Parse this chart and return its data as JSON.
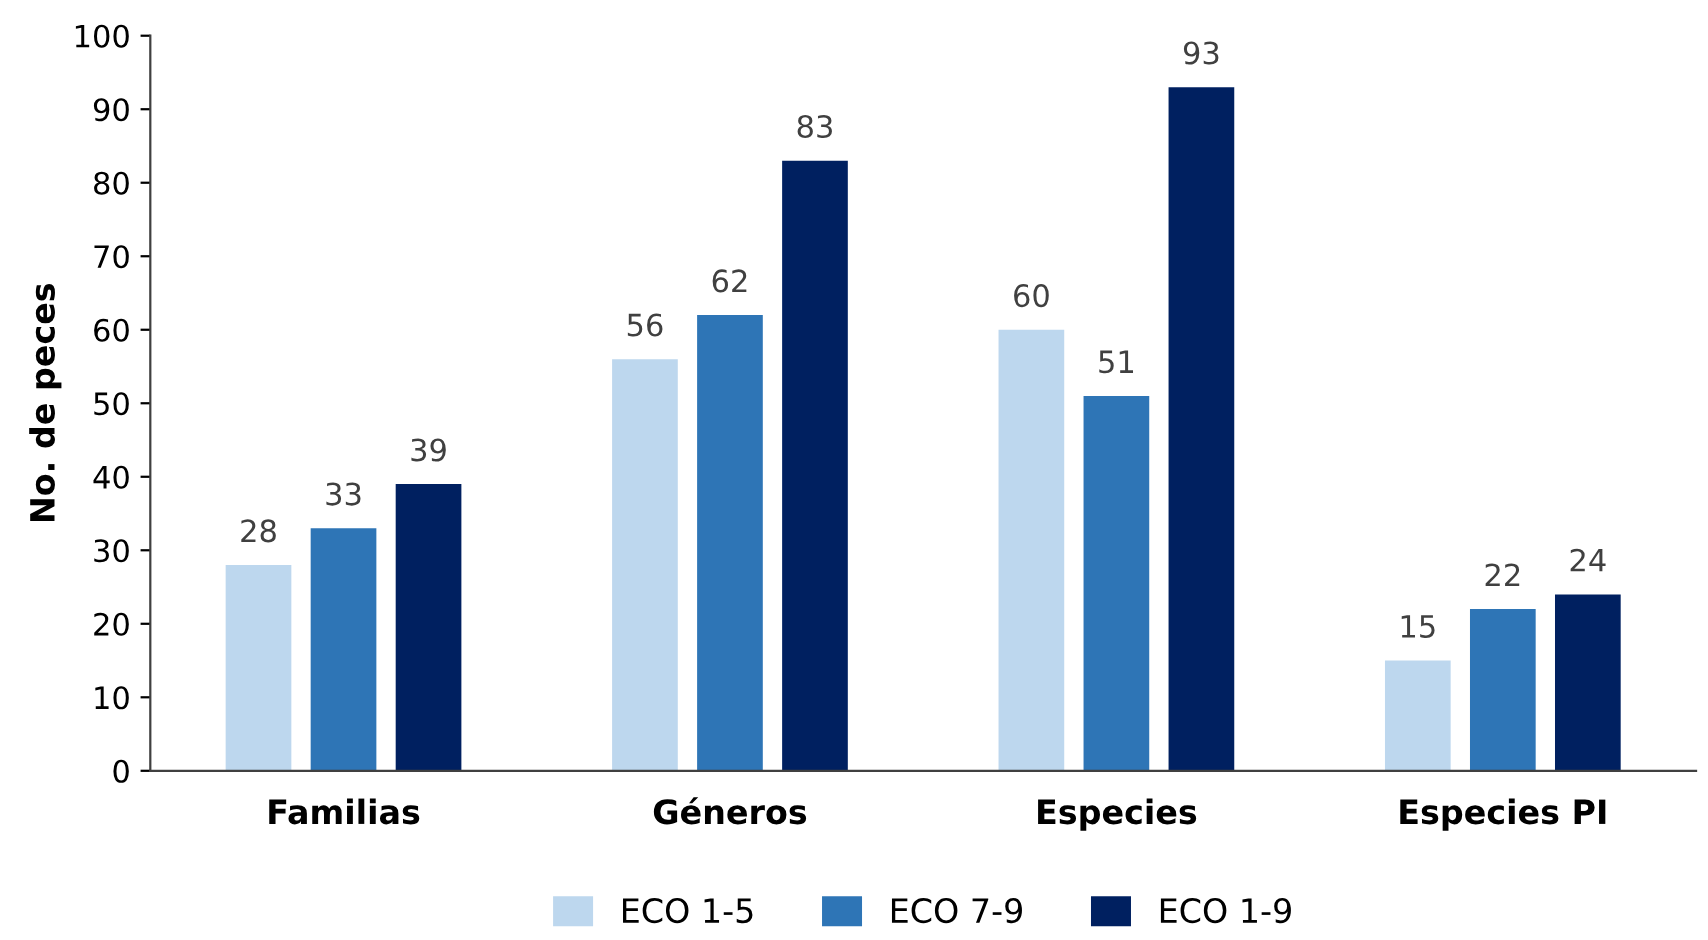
{
  "chart_data": {
    "type": "bar",
    "ylabel": "No. de peces",
    "categories": [
      "Familias",
      "Géneros",
      "Especies",
      "Especies PI"
    ],
    "series": [
      {
        "name": "ECO 1-5",
        "color": "#bdd7ee",
        "values": [
          28,
          56,
          60,
          15
        ]
      },
      {
        "name": "ECO 7-9",
        "color": "#2e75b6",
        "values": [
          33,
          62,
          51,
          22
        ]
      },
      {
        "name": "ECO 1-9",
        "color": "#002060",
        "values": [
          39,
          83,
          93,
          24
        ]
      }
    ],
    "ylim": [
      0,
      100
    ],
    "yticks": [
      0,
      10,
      20,
      30,
      40,
      50,
      60,
      70,
      80,
      90,
      100
    ],
    "grid": false,
    "legend": "bottom",
    "data_labels": true
  }
}
